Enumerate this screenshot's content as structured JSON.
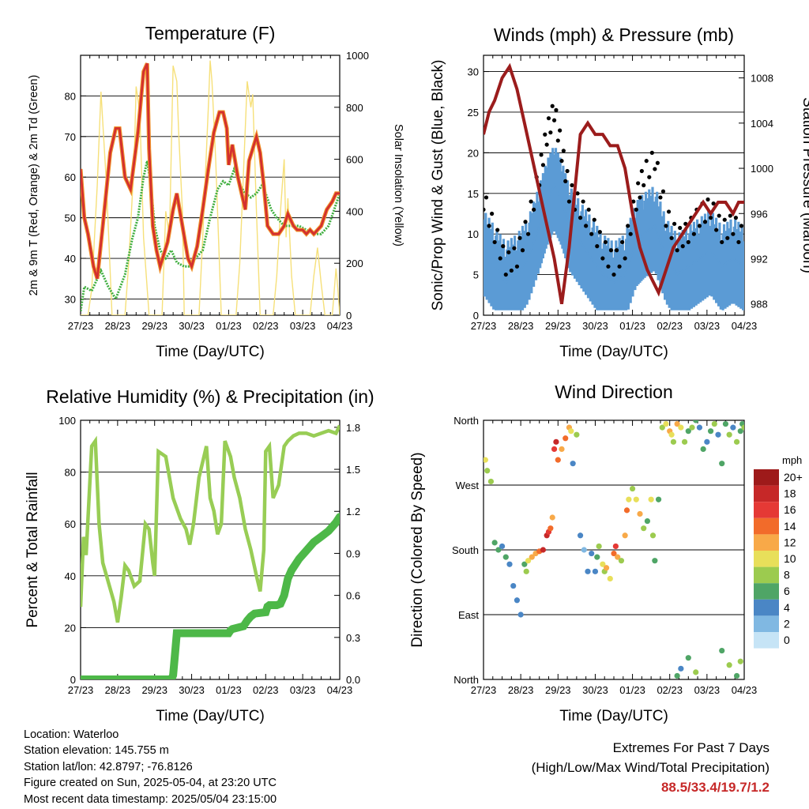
{
  "x_ticks": [
    "27/23",
    "28/23",
    "29/23",
    "30/23",
    "01/23",
    "02/23",
    "03/23",
    "04/23"
  ],
  "colors": {
    "temp_2m": "#d32f2f",
    "temp_9m": "#f0932b",
    "dewpoint": "#3fae3f",
    "solar": "#f6e07a",
    "wind": "#000000",
    "gust": "#000000",
    "sonic_wind": "#5b9bd5",
    "pressure": "#9b1c1c",
    "humidity": "#98cd55",
    "rain": "#4db848",
    "extremes": "#c62828"
  },
  "info": {
    "location": "Location: Waterloo",
    "elevation": "Station elevation: 145.755 m",
    "latlon": "Station lat/lon: 42.8797; -76.8126",
    "created": "Figure created on Sun, 2025-05-04, at 23:20 UTC",
    "recent": "Most recent data timestamp: 2025/05/04 23:15:00"
  },
  "extremes": {
    "title": "Extremes For Past 7 Days",
    "subtitle": "(High/Low/Max Wind/Total Precipitation)",
    "values": "88.5/33.4/19.7/1.2"
  },
  "chart_data": [
    {
      "type": "line",
      "title": "Temperature (F)",
      "xlabel": "Time (Day/UTC)",
      "ylabel": "2m & 9m T (Red, Orange) & 2m Td (Green)",
      "y2label": "Solar Insolation (Yellow)",
      "xlim": [
        0,
        7
      ],
      "ylim": [
        26,
        90
      ],
      "yticks": [
        30,
        40,
        50,
        60,
        70,
        80
      ],
      "y2lim": [
        0,
        1000
      ],
      "y2ticks": [
        0,
        200,
        400,
        600,
        800,
        1000
      ],
      "grid": true,
      "series": [
        {
          "key": "temp",
          "x": [
            0,
            0.1,
            0.2,
            0.35,
            0.45,
            0.6,
            0.8,
            0.95,
            1.05,
            1.2,
            1.35,
            1.55,
            1.7,
            1.8,
            1.85,
            1.95,
            2.05,
            2.15,
            2.35,
            2.5,
            2.6,
            2.75,
            2.9,
            3.0,
            3.15,
            3.3,
            3.45,
            3.6,
            3.75,
            3.85,
            3.95,
            4.0,
            4.1,
            4.25,
            4.45,
            4.55,
            4.65,
            4.75,
            4.85,
            4.95,
            5.05,
            5.2,
            5.35,
            5.5,
            5.6,
            5.75,
            5.85,
            6.0,
            6.1,
            6.2,
            6.3,
            6.5,
            6.65,
            6.8,
            6.9,
            7.0
          ],
          "y": [
            62,
            50,
            46,
            38,
            35,
            48,
            66,
            72,
            72,
            60,
            57,
            71,
            86,
            88,
            67,
            48,
            42,
            38,
            44,
            52,
            56,
            48,
            40,
            38,
            43,
            52,
            62,
            71,
            76,
            76,
            72,
            63,
            68,
            60,
            52,
            64,
            67,
            70,
            66,
            58,
            48,
            46,
            46,
            48,
            51,
            48,
            47,
            47,
            46,
            47,
            46,
            48,
            52,
            54,
            56,
            56
          ]
        },
        {
          "key": "dewpoint",
          "x": [
            0,
            0.1,
            0.3,
            0.55,
            0.75,
            0.95,
            1.2,
            1.4,
            1.55,
            1.7,
            1.8,
            1.9,
            2.0,
            2.15,
            2.3,
            2.45,
            2.6,
            2.8,
            2.95,
            3.1,
            3.3,
            3.5,
            3.7,
            3.85,
            4.0,
            4.15,
            4.3,
            4.45,
            4.6,
            4.75,
            4.9,
            5.0,
            5.15,
            5.3,
            5.5,
            5.7,
            5.9,
            6.1,
            6.3,
            6.5,
            6.7,
            6.85,
            7.0
          ],
          "y": [
            27,
            33,
            32,
            37,
            33,
            30,
            36,
            45,
            50,
            60,
            64,
            58,
            48,
            42,
            40,
            42,
            39,
            38,
            38,
            40,
            42,
            50,
            57,
            59,
            58,
            62,
            58,
            56,
            55,
            56,
            58,
            56,
            52,
            50,
            48,
            48,
            48,
            47,
            46,
            46,
            48,
            52,
            56
          ]
        },
        {
          "key": "solar",
          "x": [
            0,
            0.2,
            0.3,
            0.45,
            0.55,
            0.7,
            0.85,
            1.2,
            1.3,
            1.45,
            1.5,
            1.6,
            1.7,
            1.85,
            2.2,
            2.3,
            2.4,
            2.5,
            2.6,
            2.65,
            2.75,
            2.8,
            3.2,
            3.3,
            3.45,
            3.5,
            3.55,
            3.65,
            3.8,
            4.2,
            4.3,
            4.4,
            4.5,
            4.6,
            4.65,
            4.75,
            4.85,
            5.2,
            5.3,
            5.4,
            5.5,
            5.55,
            5.6,
            5.7,
            5.8,
            6.2,
            6.3,
            6.4,
            6.5,
            6.6,
            6.8,
            6.9,
            6.95,
            7.0
          ],
          "y": [
            0,
            0,
            100,
            500,
            860,
            500,
            0,
            0,
            200,
            600,
            880,
            780,
            300,
            0,
            0,
            400,
            300,
            960,
            900,
            700,
            400,
            0,
            0,
            300,
            800,
            980,
            900,
            600,
            0,
            0,
            200,
            550,
            900,
            800,
            850,
            400,
            0,
            0,
            150,
            400,
            600,
            300,
            450,
            150,
            0,
            0,
            150,
            260,
            120,
            0,
            0,
            180,
            100,
            0
          ]
        }
      ]
    },
    {
      "type": "line",
      "title": "Winds (mph) & Pressure (mb)",
      "xlabel": "Time (Day/UTC)",
      "ylabel": "Sonic/Prop Wind & Gust (Blue, Black)",
      "y2label": "Station Pressure (Maroon)",
      "xlim": [
        0,
        7
      ],
      "ylim": [
        0,
        32
      ],
      "yticks": [
        0,
        5,
        10,
        15,
        20,
        25,
        30
      ],
      "y2lim": [
        987,
        1010
      ],
      "y2ticks": [
        988,
        992,
        996,
        1000,
        1004,
        1008
      ],
      "grid": true,
      "series": [
        {
          "key": "sonic_wind",
          "x": [
            0,
            0.3,
            0.6,
            0.9,
            1.2,
            1.5,
            1.7,
            1.9,
            2.1,
            2.3,
            2.6,
            2.9,
            3.2,
            3.5,
            3.8,
            4.1,
            4.3,
            4.6,
            4.9,
            5.2,
            5.5,
            5.8,
            6.1,
            6.4,
            6.7,
            7.0
          ],
          "y": [
            8,
            6,
            4,
            5,
            7,
            11,
            14,
            16,
            14,
            11,
            9,
            7,
            5,
            4,
            5,
            9,
            10,
            11,
            7,
            5,
            6,
            7,
            8,
            6,
            7,
            6
          ]
        },
        {
          "key": "gust",
          "x": [
            0,
            0.3,
            0.6,
            0.9,
            1.2,
            1.5,
            1.7,
            1.9,
            2.1,
            2.3,
            2.6,
            2.9,
            3.2,
            3.5,
            3.8,
            4.1,
            4.3,
            4.6,
            4.9,
            5.2,
            5.5,
            5.8,
            6.1,
            6.4,
            6.7,
            7.0
          ],
          "y": [
            14,
            10,
            6,
            7,
            11,
            17,
            22,
            25,
            20,
            15,
            13,
            11,
            8,
            6,
            8,
            14,
            17,
            19,
            12,
            9,
            10,
            12,
            13,
            10,
            11,
            9
          ]
        },
        {
          "key": "pressure",
          "x": [
            0,
            0.15,
            0.3,
            0.5,
            0.7,
            0.9,
            1.1,
            1.3,
            1.5,
            1.7,
            1.9,
            2.0,
            2.1,
            2.3,
            2.45,
            2.6,
            2.8,
            3.0,
            3.2,
            3.4,
            3.6,
            3.8,
            4.0,
            4.2,
            4.4,
            4.55,
            4.7,
            4.9,
            5.1,
            5.3,
            5.5,
            5.7,
            5.9,
            6.1,
            6.3,
            6.5,
            6.7,
            6.85,
            7.0
          ],
          "y": [
            1003,
            1005,
            1006,
            1008,
            1009,
            1007,
            1004,
            1001,
            998,
            995,
            992,
            990,
            988,
            993,
            998,
            1003,
            1004,
            1003,
            1003,
            1002,
            1002,
            1000,
            996,
            993,
            991,
            990,
            989,
            991,
            993,
            994,
            995,
            996,
            997,
            996,
            997,
            997,
            996,
            997,
            997
          ]
        }
      ]
    },
    {
      "type": "line",
      "title": "Relative Humidity (%) & Precipitation (in)",
      "xlabel": "Time (Day/UTC)",
      "ylabel": "Percent & Total Rainfall",
      "xlim": [
        0,
        7
      ],
      "ylim": [
        0,
        100
      ],
      "yticks": [
        0,
        20,
        40,
        60,
        80,
        100
      ],
      "y2lim": [
        0,
        1.85
      ],
      "y2ticks": [
        0.0,
        0.3,
        0.6,
        0.9,
        1.2,
        1.5,
        1.8
      ],
      "y2ticklabels": [
        "0.0",
        "0.3",
        "0.6",
        "0.9",
        "1.2",
        "1.5",
        "1.8"
      ],
      "grid": true,
      "series": [
        {
          "key": "humidity",
          "x": [
            0,
            0.08,
            0.15,
            0.3,
            0.4,
            0.5,
            0.6,
            0.7,
            0.8,
            0.9,
            1.0,
            1.1,
            1.2,
            1.3,
            1.45,
            1.6,
            1.75,
            1.85,
            1.95,
            2.0,
            2.1,
            2.3,
            2.5,
            2.7,
            2.85,
            2.95,
            3.05,
            3.2,
            3.4,
            3.5,
            3.6,
            3.7,
            3.8,
            3.9,
            4.05,
            4.15,
            4.3,
            4.45,
            4.6,
            4.75,
            4.85,
            4.95,
            5.0,
            5.1,
            5.2,
            5.35,
            5.5,
            5.6,
            5.75,
            5.9,
            6.1,
            6.3,
            6.5,
            6.7,
            6.9,
            7.0
          ],
          "y": [
            28,
            55,
            48,
            90,
            92,
            60,
            45,
            40,
            35,
            30,
            22,
            32,
            44,
            42,
            36,
            38,
            60,
            58,
            45,
            40,
            88,
            86,
            70,
            62,
            58,
            52,
            60,
            78,
            90,
            70,
            65,
            56,
            60,
            92,
            86,
            78,
            70,
            58,
            50,
            40,
            34,
            50,
            88,
            90,
            70,
            75,
            90,
            92,
            94,
            95,
            95,
            94,
            95,
            96,
            95,
            98
          ]
        },
        {
          "key": "rain",
          "x": [
            0,
            2.45,
            2.5,
            2.55,
            2.6,
            3.0,
            4.0,
            4.05,
            4.1,
            4.4,
            4.5,
            4.6,
            4.7,
            5.0,
            5.05,
            5.1,
            5.3,
            5.4,
            5.5,
            5.6,
            5.7,
            5.8,
            5.9,
            6.1,
            6.3,
            6.5,
            6.7,
            6.9,
            7.0
          ],
          "y": [
            0,
            0,
            0.03,
            0.18,
            0.33,
            0.33,
            0.33,
            0.35,
            0.36,
            0.38,
            0.42,
            0.45,
            0.47,
            0.48,
            0.52,
            0.53,
            0.53,
            0.54,
            0.6,
            0.72,
            0.78,
            0.82,
            0.86,
            0.92,
            0.98,
            1.02,
            1.06,
            1.12,
            1.16
          ]
        }
      ]
    },
    {
      "type": "scatter",
      "title": "Wind Direction",
      "xlabel": "Time (Day/UTC)",
      "ylabel": "Direction (Colored By Speed)",
      "xlim": [
        0,
        7
      ],
      "ylim": [
        0,
        360
      ],
      "ytick_values": [
        0,
        90,
        180,
        270,
        360
      ],
      "ytick_labels": [
        "North",
        "East",
        "South",
        "West",
        "North"
      ],
      "grid": true,
      "legend": {
        "title": "mph",
        "labels": [
          "20+",
          "18",
          "16",
          "14",
          "12",
          "10",
          "8",
          "6",
          "4",
          "2",
          "0"
        ],
        "colors": [
          "#9e1a1a",
          "#c62828",
          "#e53935",
          "#f26b2a",
          "#f8a948",
          "#e8df5a",
          "#9ccb4f",
          "#4fa566",
          "#4a86c5",
          "#80b8e2",
          "#c6e4f6"
        ]
      },
      "points": {
        "x": [
          0.05,
          0.1,
          0.2,
          0.3,
          0.4,
          0.5,
          0.6,
          0.7,
          0.8,
          0.9,
          1.0,
          1.1,
          1.15,
          1.2,
          1.3,
          1.4,
          1.5,
          1.6,
          1.7,
          1.75,
          1.8,
          1.85,
          1.9,
          1.95,
          2.0,
          2.1,
          2.2,
          2.3,
          2.35,
          2.4,
          2.5,
          2.6,
          2.7,
          2.8,
          2.9,
          3.0,
          3.05,
          3.1,
          3.2,
          3.25,
          3.3,
          3.4,
          3.5,
          3.55,
          3.6,
          3.7,
          3.8,
          3.85,
          3.9,
          4.0,
          4.1,
          4.2,
          4.3,
          4.4,
          4.5,
          4.55,
          4.6,
          4.7,
          4.8,
          4.9,
          5.0,
          5.05,
          5.1,
          5.2,
          5.3,
          5.4,
          5.5,
          5.6,
          5.7,
          5.8,
          5.9,
          6.0,
          6.1,
          6.2,
          6.3,
          6.4,
          6.5,
          6.6,
          6.7,
          6.8,
          6.9,
          6.95,
          7.0,
          5.2,
          5.3,
          5.5,
          5.7,
          6.4,
          6.6,
          6.8,
          6.9
        ],
        "y": [
          305,
          290,
          275,
          190,
          180,
          185,
          170,
          160,
          130,
          110,
          90,
          160,
          150,
          165,
          170,
          175,
          178,
          180,
          200,
          205,
          210,
          225,
          320,
          330,
          305,
          320,
          335,
          350,
          345,
          300,
          340,
          200,
          180,
          150,
          175,
          150,
          170,
          185,
          160,
          150,
          155,
          140,
          175,
          185,
          170,
          165,
          200,
          235,
          250,
          265,
          250,
          230,
          210,
          220,
          250,
          200,
          165,
          250,
          350,
          355,
          345,
          340,
          330,
          355,
          350,
          330,
          345,
          350,
          360,
          350,
          320,
          330,
          345,
          355,
          340,
          300,
          355,
          340,
          350,
          330,
          345,
          355,
          350,
          5,
          15,
          30,
          10,
          40,
          20,
          5,
          25
        ],
        "speed": [
          9,
          7,
          8,
          5,
          6,
          4,
          5,
          4,
          3,
          4,
          3,
          6,
          7,
          9,
          11,
          12,
          14,
          17,
          18,
          16,
          14,
          12,
          15,
          17,
          14,
          11,
          13,
          12,
          10,
          3,
          7,
          4,
          2,
          3,
          4,
          4,
          6,
          8,
          10,
          7,
          12,
          9,
          13,
          15,
          11,
          8,
          12,
          14,
          10,
          7,
          9,
          11,
          8,
          6,
          9,
          7,
          5,
          6,
          8,
          10,
          11,
          9,
          7,
          12,
          10,
          8,
          6,
          7,
          5,
          4,
          6,
          3,
          5,
          7,
          4,
          6,
          5,
          7,
          4,
          8,
          6,
          5,
          7,
          5,
          4,
          6,
          7,
          5,
          8,
          6,
          7
        ]
      }
    }
  ]
}
